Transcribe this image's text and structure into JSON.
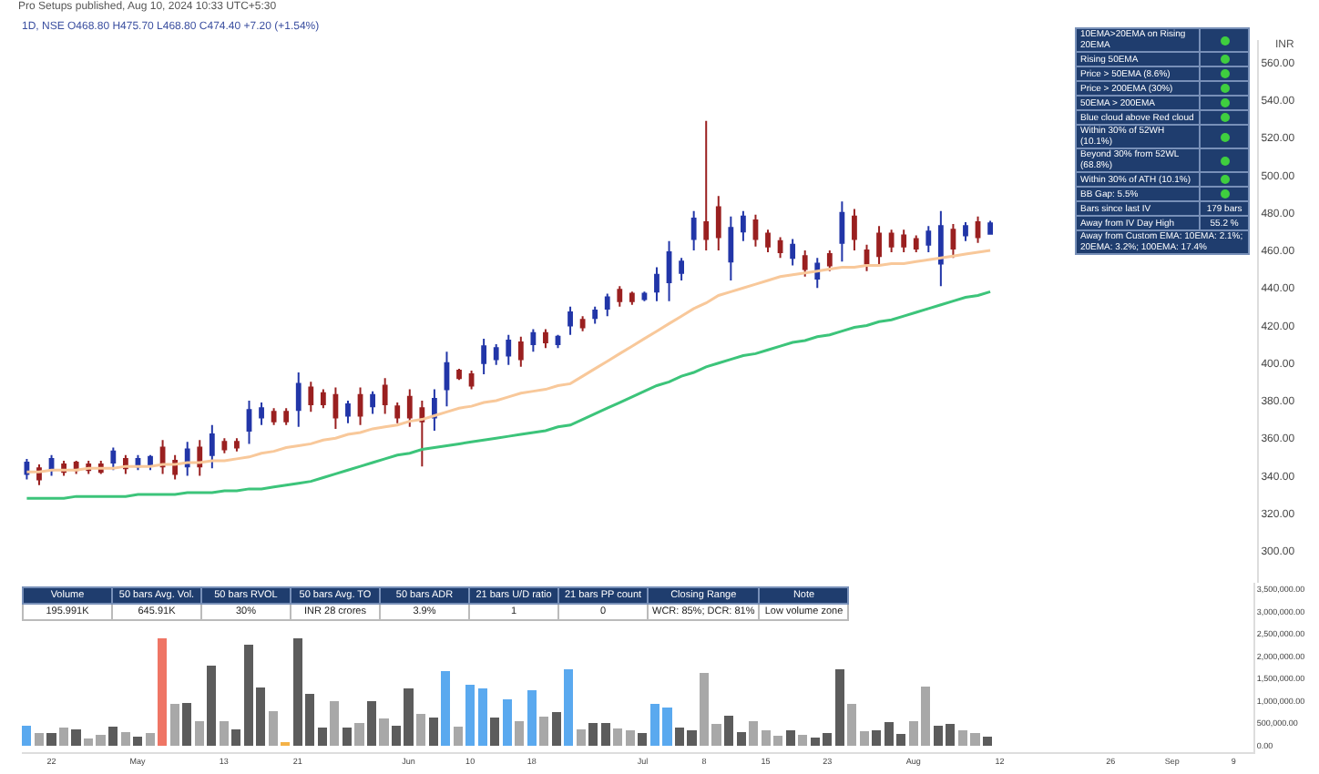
{
  "chart_data": [
    {
      "type": "candlestick",
      "title": "Pro Setups published, Aug 10, 2024 10:33 UTC+5:30",
      "subtitle": "1D, NSE O468.80 H475.70 L468.80 C474.40 +7.20 (+1.54%)",
      "ylabel": "INR",
      "categories": [
        null,
        null,
        null,
        null,
        null,
        null,
        null,
        null,
        null,
        null,
        null,
        null,
        null,
        null,
        null,
        null,
        null,
        null,
        null,
        null,
        null,
        null,
        null,
        null,
        null,
        null,
        null,
        null,
        null,
        null,
        null,
        null,
        null,
        null,
        null,
        null,
        null,
        null,
        null,
        null,
        null,
        null,
        null,
        null,
        null,
        null,
        null,
        null,
        null,
        null,
        null,
        null,
        null,
        null,
        null,
        null,
        null,
        null,
        null,
        null,
        null,
        null,
        null,
        null,
        null,
        null,
        null,
        null,
        null,
        null,
        null,
        null,
        null,
        null,
        null,
        null,
        null,
        null,
        null,
        null,
        null,
        null,
        null,
        null,
        null,
        null,
        null,
        null,
        null,
        null,
        null,
        null,
        null,
        null,
        null,
        null,
        null,
        null,
        null,
        null
      ],
      "colors": [
        "#2236a8",
        "#9a2020",
        "#2236a8",
        "#9a2020",
        "#9a2020",
        "#9a2020",
        "#9a2020",
        "#2236a8",
        "#9a2020",
        "#2236a8",
        "#2236a8",
        "#9a2020",
        "#9a2020",
        "#2236a8",
        "#9a2020",
        "#2236a8",
        "#9a2020",
        "#9a2020",
        "#2236a8",
        "#2236a8",
        "#9a2020",
        "#9a2020",
        "#2236a8",
        "#9a2020",
        "#9a2020",
        "#9a2020",
        "#2236a8",
        "#9a2020",
        "#2236a8",
        "#9a2020",
        "#9a2020",
        "#9a2020",
        "#9a2020",
        "#2236a8",
        "#2236a8",
        "#9a2020",
        "#9a2020",
        "#2236a8",
        "#2236a8",
        "#2236a8",
        "#9a2020",
        "#2236a8",
        "#9a2020",
        "#2236a8",
        "#2236a8",
        "#9a2020",
        "#2236a8",
        "#2236a8",
        "#9a2020",
        "#9a2020",
        "#2236a8",
        "#2236a8",
        "#2236a8",
        "#2236a8",
        "#2236a8",
        "#9a2020",
        "#9a2020",
        "#2236a8",
        "#2236a8",
        "#9a2020",
        "#9a2020",
        "#9a2020",
        "#2236a8",
        "#9a2020",
        "#2236a8",
        "#9a2020",
        "#2236a8",
        "#9a2020",
        "#9a2020",
        "#9a2020",
        "#9a2020",
        "#9a2020",
        "#9a2020",
        "#2236a8",
        "#2236a8",
        "#9a2020",
        "#2236a8",
        "#9a2020",
        "#2236a8",
        null,
        null,
        null,
        null,
        null,
        null,
        null,
        null,
        null,
        null,
        null,
        null,
        null,
        null,
        null,
        null,
        null,
        null,
        null,
        null,
        null
      ],
      "ohlc": [
        [
          341,
          349,
          338,
          347
        ],
        [
          344,
          346,
          335,
          338
        ],
        [
          343,
          351,
          340,
          349
        ],
        [
          346,
          348,
          340,
          342
        ],
        [
          347,
          348,
          341,
          343
        ],
        [
          346,
          348,
          341,
          343
        ],
        [
          346,
          348,
          341,
          342
        ],
        [
          347,
          355,
          343,
          353
        ],
        [
          349,
          351,
          341,
          344
        ],
        [
          345,
          351,
          343,
          349
        ],
        [
          346,
          351,
          343,
          350
        ],
        [
          355,
          359,
          341,
          345
        ],
        [
          348,
          351,
          338,
          341
        ],
        [
          345,
          358,
          340,
          354
        ],
        [
          355,
          359,
          340,
          345
        ],
        [
          351,
          367,
          344,
          362
        ],
        [
          358,
          360,
          352,
          354
        ],
        [
          358,
          360,
          353,
          355
        ],
        [
          364,
          380,
          357,
          375
        ],
        [
          371,
          379,
          367,
          376
        ],
        [
          374,
          376,
          367,
          369
        ],
        [
          374,
          376,
          367,
          369
        ],
        [
          375,
          395,
          366,
          389
        ],
        [
          387,
          390,
          374,
          378
        ],
        [
          384,
          386,
          376,
          378
        ],
        [
          383,
          387,
          365,
          371
        ],
        [
          372,
          380,
          368,
          378
        ],
        [
          383,
          387,
          367,
          372
        ],
        [
          377,
          385,
          373,
          383
        ],
        [
          388,
          392,
          373,
          378
        ],
        [
          377,
          379,
          368,
          371
        ],
        [
          382,
          386,
          366,
          371
        ],
        [
          376,
          380,
          345,
          369
        ],
        [
          371,
          386,
          364,
          381
        ],
        [
          386,
          406,
          377,
          400
        ],
        [
          396,
          397,
          391,
          392
        ],
        [
          394,
          396,
          386,
          388
        ],
        [
          400,
          413,
          394,
          409
        ],
        [
          402,
          410,
          399,
          408
        ],
        [
          404,
          415,
          399,
          412
        ],
        [
          411,
          414,
          398,
          402
        ],
        [
          410,
          418,
          406,
          416
        ],
        [
          416,
          418,
          408,
          411
        ],
        [
          410,
          415,
          408,
          414
        ],
        [
          420,
          430,
          415,
          427
        ],
        [
          423,
          425,
          417,
          419
        ],
        [
          424,
          430,
          421,
          428
        ],
        [
          429,
          437,
          425,
          435
        ],
        [
          439,
          441,
          430,
          433
        ],
        [
          437,
          438,
          431,
          433
        ],
        [
          434,
          438,
          433,
          437
        ],
        [
          438,
          451,
          433,
          447
        ],
        [
          443,
          465,
          433,
          459
        ],
        [
          448,
          456,
          444,
          454
        ],
        [
          466,
          481,
          460,
          477
        ],
        [
          475,
          529,
          460,
          466
        ],
        [
          483,
          489,
          460,
          467
        ],
        [
          454,
          478,
          444,
          472
        ],
        [
          470,
          481,
          465,
          478
        ],
        [
          476,
          479,
          462,
          466
        ],
        [
          469,
          471,
          459,
          462
        ],
        [
          465,
          467,
          456,
          459
        ],
        [
          456,
          466,
          452,
          463
        ],
        [
          457,
          460,
          446,
          450
        ],
        [
          445,
          456,
          440,
          453
        ],
        [
          458,
          460,
          449,
          452
        ],
        [
          464,
          486,
          454,
          480
        ],
        [
          478,
          482,
          460,
          466
        ],
        [
          460,
          463,
          449,
          453
        ],
        [
          469,
          473,
          452,
          457
        ],
        [
          469,
          471,
          459,
          462
        ],
        [
          468,
          471,
          459,
          462
        ],
        [
          466,
          468,
          459,
          461
        ],
        [
          463,
          473,
          459,
          470
        ],
        [
          453,
          481,
          441,
          473
        ],
        [
          471,
          474,
          456,
          461
        ],
        [
          468,
          475,
          465,
          473
        ],
        [
          475,
          478,
          464,
          467
        ],
        [
          468.8,
          475.7,
          468.8,
          474.4
        ],
        null,
        null,
        null,
        null,
        null,
        null,
        null,
        null,
        null,
        null,
        null,
        null,
        null,
        null,
        null,
        null,
        null,
        null,
        null,
        null,
        null
      ],
      "series": [
        {
          "type": "line",
          "color": "#3cc47a",
          "values": [
            328,
            328,
            328,
            328,
            329,
            329,
            329,
            329,
            329,
            330,
            330,
            330,
            330,
            331,
            331,
            331,
            332,
            332,
            333,
            333,
            334,
            335,
            336,
            337,
            339,
            341,
            343,
            345,
            347,
            349,
            351,
            352,
            354,
            355,
            356,
            357,
            358,
            359,
            360,
            361,
            362,
            363,
            364,
            366,
            367,
            370,
            373,
            376,
            379,
            382,
            385,
            388,
            390,
            393,
            395,
            398,
            400,
            402,
            404,
            405,
            407,
            409,
            411,
            412,
            414,
            415,
            417,
            419,
            420,
            422,
            423,
            425,
            427,
            429,
            431,
            433,
            435,
            436,
            438,
            null,
            null,
            null,
            null,
            null,
            null,
            null,
            null,
            null,
            null,
            null,
            null,
            null,
            null,
            null,
            null,
            null,
            null,
            null,
            null,
            null
          ]
        },
        {
          "type": "line",
          "color": "#f8c89a",
          "values": [
            342,
            342,
            343,
            343,
            343,
            344,
            344,
            344,
            345,
            345,
            345,
            346,
            346,
            347,
            347,
            348,
            348,
            349,
            350,
            352,
            353,
            355,
            356,
            357,
            359,
            360,
            362,
            363,
            365,
            366,
            367,
            369,
            370,
            372,
            374,
            376,
            377,
            379,
            380,
            382,
            384,
            385,
            386,
            388,
            389,
            393,
            397,
            401,
            405,
            409,
            413,
            417,
            421,
            425,
            429,
            432,
            436,
            438,
            440,
            442,
            444,
            446,
            447,
            448,
            449,
            450,
            451,
            451,
            452,
            452,
            453,
            453,
            454,
            455,
            456,
            457,
            458,
            459,
            460,
            null,
            null,
            null,
            null,
            null,
            null,
            null,
            null,
            null,
            null,
            null,
            null,
            null,
            null,
            null,
            null,
            null,
            null,
            null,
            null,
            null
          ]
        }
      ],
      "ylim": [
        283,
        572
      ],
      "yticks": [
        {
          "value": 300,
          "label": "300.00"
        },
        {
          "value": 320,
          "label": "320.00"
        },
        {
          "value": 340,
          "label": "340.00"
        },
        {
          "value": 360,
          "label": "360.00"
        },
        {
          "value": 380,
          "label": "380.00"
        },
        {
          "value": 400,
          "label": "400.00"
        },
        {
          "value": 420,
          "label": "420.00"
        },
        {
          "value": 440,
          "label": "440.00"
        },
        {
          "value": 460,
          "label": "460.00"
        },
        {
          "value": 480,
          "label": "480.00"
        },
        {
          "value": 500,
          "label": "500.00"
        },
        {
          "value": 520,
          "label": "520.00"
        },
        {
          "value": 540,
          "label": "540.00"
        },
        {
          "value": 560,
          "label": "560.00"
        }
      ],
      "tick_labels": "y"
    },
    {
      "type": "other",
      "y_categories": [
        "10EMA>20EMA on Rising 20EMA",
        "Rising 50EMA",
        "Price > 50EMA (8.6%)",
        "Price > 200EMA (30%)",
        "50EMA > 200EMA",
        "Blue cloud above Red cloud",
        "Within 30% of 52WH (10.1%)",
        "Beyond 30% from 52WL (68.8%)",
        "Within 30% of ATH (10.1%)",
        "BB Gap: 5.5%",
        "Bars since last IV",
        "Away from IV Day High",
        "Away from Custom EMA: 10EMA: 2.1%; 20EMA: 3.2%; 100EMA: 17.4%"
      ],
      "cell_labels": [
        [
          null
        ],
        [
          null
        ],
        [
          null
        ],
        [
          null
        ],
        [
          null
        ],
        [
          null
        ],
        [
          null
        ],
        [
          null
        ],
        [
          null
        ],
        [
          null
        ],
        [
          "179 bars"
        ],
        [
          "55.2 %"
        ],
        null
      ]
    },
    {
      "type": "other",
      "categories": [
        "Volume",
        "50 bars Avg. Vol.",
        "50 bars RVOL",
        "50 bars Avg. TO",
        "50 bars ADR",
        "21 bars U/D ratio",
        "21 bars PP count",
        "Closing Range",
        "Note"
      ],
      "cell_labels": [
        [
          "195.991K",
          "645.91K",
          "30%",
          "INR 28 crores",
          "3.9%",
          "1",
          "0",
          "WCR: 85%; DCR: 81%",
          "Low volume zone"
        ]
      ]
    },
    {
      "type": "bar",
      "categories": [
        null,
        null,
        "22",
        null,
        null,
        null,
        null,
        null,
        null,
        "May",
        null,
        null,
        null,
        null,
        null,
        null,
        "13",
        null,
        null,
        null,
        null,
        null,
        "21",
        null,
        null,
        null,
        null,
        null,
        null,
        null,
        null,
        "Jun",
        null,
        null,
        null,
        null,
        "10",
        null,
        null,
        null,
        null,
        "18",
        null,
        null,
        null,
        null,
        null,
        null,
        null,
        null,
        "Jul",
        null,
        null,
        null,
        null,
        "8",
        null,
        null,
        null,
        null,
        "15",
        null,
        null,
        null,
        null,
        "23",
        null,
        null,
        null,
        null,
        null,
        null,
        "Aug",
        null,
        null,
        null,
        null,
        null,
        null,
        "12",
        null,
        null,
        null,
        null,
        null,
        null,
        null,
        null,
        "26",
        null,
        null,
        null,
        null,
        "Sep",
        null,
        null,
        null,
        null,
        "9",
        null
      ],
      "values": [
        440000,
        280000,
        280000,
        400000,
        360000,
        160000,
        240000,
        420000,
        300000,
        200000,
        280000,
        2400000,
        940000,
        960000,
        540000,
        1800000,
        540000,
        360000,
        2260000,
        1300000,
        760000,
        80000,
        2400000,
        1160000,
        400000,
        1000000,
        400000,
        500000,
        1000000,
        600000,
        440000,
        1280000,
        700000,
        620000,
        1660000,
        420000,
        1360000,
        1280000,
        620000,
        1040000,
        540000,
        1240000,
        640000,
        740000,
        1700000,
        360000,
        500000,
        500000,
        380000,
        340000,
        280000,
        940000,
        860000,
        400000,
        340000,
        1620000,
        480000,
        660000,
        300000,
        540000,
        340000,
        220000,
        340000,
        240000,
        180000,
        280000,
        1700000,
        940000,
        320000,
        340000,
        520000,
        260000,
        540000,
        1320000,
        440000,
        480000,
        340000,
        280000,
        200000,
        null,
        null,
        null,
        null,
        null,
        null,
        null,
        null,
        null,
        null,
        null,
        null,
        null,
        null,
        null,
        null,
        null,
        null,
        null,
        null,
        null
      ],
      "colors": [
        "#5aa9ef",
        "#a8a8a8",
        "#5c5c5c",
        "#a8a8a8",
        "#5c5c5c",
        "#a8a8a8",
        "#a8a8a8",
        "#5c5c5c",
        "#a8a8a8",
        "#5c5c5c",
        "#a8a8a8",
        "#ef7565",
        "#a8a8a8",
        "#5c5c5c",
        "#a8a8a8",
        "#5c5c5c",
        "#a8a8a8",
        "#5c5c5c",
        "#5c5c5c",
        "#5c5c5c",
        "#a8a8a8",
        "#f4b247",
        "#5c5c5c",
        "#5c5c5c",
        "#5c5c5c",
        "#a8a8a8",
        "#5c5c5c",
        "#a8a8a8",
        "#5c5c5c",
        "#a8a8a8",
        "#5c5c5c",
        "#5c5c5c",
        "#a8a8a8",
        "#5c5c5c",
        "#5aa9ef",
        "#a8a8a8",
        "#5aa9ef",
        "#5aa9ef",
        "#5c5c5c",
        "#5aa9ef",
        "#a8a8a8",
        "#5aa9ef",
        "#a8a8a8",
        "#5c5c5c",
        "#5aa9ef",
        "#a8a8a8",
        "#5c5c5c",
        "#5c5c5c",
        "#a8a8a8",
        "#a8a8a8",
        "#5c5c5c",
        "#5aa9ef",
        "#5aa9ef",
        "#5c5c5c",
        "#5c5c5c",
        "#a8a8a8",
        "#a8a8a8",
        "#5c5c5c",
        "#5c5c5c",
        "#a8a8a8",
        "#a8a8a8",
        "#a8a8a8",
        "#5c5c5c",
        "#a8a8a8",
        "#5c5c5c",
        "#5c5c5c",
        "#5c5c5c",
        "#a8a8a8",
        "#a8a8a8",
        "#5c5c5c",
        "#5c5c5c",
        "#5c5c5c",
        "#a8a8a8",
        "#a8a8a8",
        "#5c5c5c",
        "#5c5c5c",
        "#a8a8a8",
        "#a8a8a8",
        "#5c5c5c",
        null,
        null,
        null,
        null,
        null,
        null,
        null,
        null,
        null,
        null,
        null,
        null,
        null,
        null,
        null,
        null,
        null,
        null,
        null,
        null,
        null
      ],
      "ylim": [
        -150000,
        3650000
      ],
      "yticks": [
        {
          "value": 0,
          "label": "0.00"
        },
        {
          "value": 500000,
          "label": "500,000.00"
        },
        {
          "value": 1000000,
          "label": "1,000,000.00"
        },
        {
          "value": 1500000,
          "label": "1,500,000.00"
        },
        {
          "value": 2000000,
          "label": "2,000,000.00"
        },
        {
          "value": 2500000,
          "label": "2,500,000.00"
        },
        {
          "value": 3000000,
          "label": "3,000,000.00"
        },
        {
          "value": 3500000,
          "label": "3,500,000.00"
        }
      ]
    }
  ]
}
